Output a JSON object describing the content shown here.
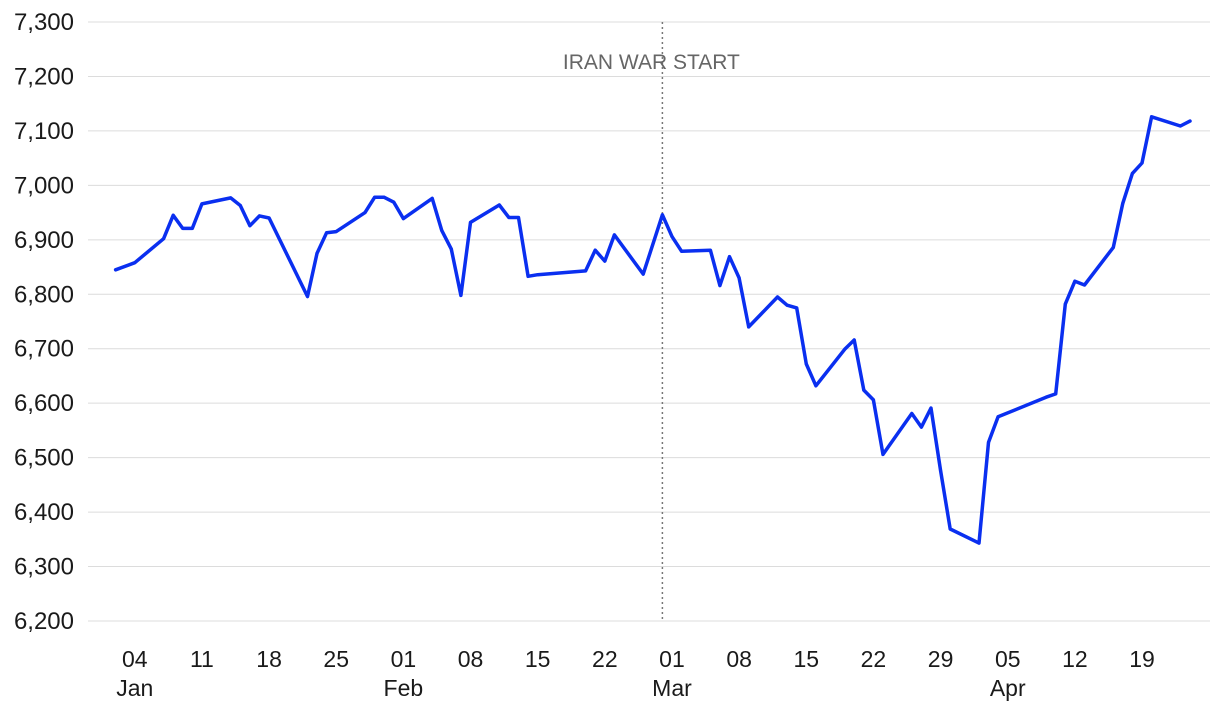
{
  "chart_data": {
    "type": "line",
    "title": "",
    "xlabel": "",
    "ylabel": "",
    "ylim": [
      6200,
      7300
    ],
    "yticks": [
      6200,
      6300,
      6400,
      6500,
      6600,
      6700,
      6800,
      6900,
      7000,
      7100,
      7200,
      7300
    ],
    "ytick_labels": [
      "6,200",
      "6,300",
      "6,400",
      "6,500",
      "6,600",
      "6,700",
      "6,800",
      "6,900",
      "7,000",
      "7,100",
      "7,200",
      "7,300"
    ],
    "xlim": [
      "2026-01-01",
      "2026-04-24"
    ],
    "xticks": [
      {
        "date": "2026-01-04",
        "day": "04",
        "month": "Jan"
      },
      {
        "date": "2026-01-11",
        "day": "11",
        "month": ""
      },
      {
        "date": "2026-01-18",
        "day": "18",
        "month": ""
      },
      {
        "date": "2026-01-25",
        "day": "25",
        "month": ""
      },
      {
        "date": "2026-02-01",
        "day": "01",
        "month": "Feb"
      },
      {
        "date": "2026-02-08",
        "day": "08",
        "month": ""
      },
      {
        "date": "2026-02-15",
        "day": "15",
        "month": ""
      },
      {
        "date": "2026-02-22",
        "day": "22",
        "month": ""
      },
      {
        "date": "2026-03-01",
        "day": "01",
        "month": "Mar"
      },
      {
        "date": "2026-03-08",
        "day": "08",
        "month": ""
      },
      {
        "date": "2026-03-15",
        "day": "15",
        "month": ""
      },
      {
        "date": "2026-03-22",
        "day": "22",
        "month": ""
      },
      {
        "date": "2026-03-29",
        "day": "29",
        "month": ""
      },
      {
        "date": "2026-04-05",
        "day": "05",
        "month": "Apr"
      },
      {
        "date": "2026-04-12",
        "day": "12",
        "month": ""
      },
      {
        "date": "2026-04-19",
        "day": "19",
        "month": ""
      }
    ],
    "grid": true,
    "annotation": {
      "label": "IRAN WAR START",
      "date": "2026-02-28"
    },
    "series": [
      {
        "color": "#0a2ff0",
        "points": [
          [
            "2026-01-02",
            6845
          ],
          [
            "2026-01-04",
            6858
          ],
          [
            "2026-01-07",
            6902
          ],
          [
            "2026-01-08",
            6945
          ],
          [
            "2026-01-09",
            6921
          ],
          [
            "2026-01-10",
            6921
          ],
          [
            "2026-01-11",
            6966
          ],
          [
            "2026-01-14",
            6977
          ],
          [
            "2026-01-15",
            6963
          ],
          [
            "2026-01-16",
            6926
          ],
          [
            "2026-01-17",
            6944
          ],
          [
            "2026-01-18",
            6940
          ],
          [
            "2026-01-22",
            6796
          ],
          [
            "2026-01-23",
            6875
          ],
          [
            "2026-01-24",
            6913
          ],
          [
            "2026-01-25",
            6915
          ],
          [
            "2026-01-28",
            6950
          ],
          [
            "2026-01-29",
            6978
          ],
          [
            "2026-01-30",
            6978
          ],
          [
            "2026-01-31",
            6969
          ],
          [
            "2026-02-01",
            6939
          ],
          [
            "2026-02-04",
            6976
          ],
          [
            "2026-02-05",
            6917
          ],
          [
            "2026-02-06",
            6883
          ],
          [
            "2026-02-07",
            6798
          ],
          [
            "2026-02-08",
            6932
          ],
          [
            "2026-02-11",
            6964
          ],
          [
            "2026-02-12",
            6941
          ],
          [
            "2026-02-13",
            6941
          ],
          [
            "2026-02-14",
            6833
          ],
          [
            "2026-02-15",
            6836
          ],
          [
            "2026-02-20",
            6843
          ],
          [
            "2026-02-21",
            6881
          ],
          [
            "2026-02-22",
            6861
          ],
          [
            "2026-02-23",
            6909
          ],
          [
            "2026-02-26",
            6837
          ],
          [
            "2026-02-28",
            6946
          ],
          [
            "2026-03-01",
            6906
          ],
          [
            "2026-03-02",
            6879
          ],
          [
            "2026-03-05",
            6881
          ],
          [
            "2026-03-06",
            6816
          ],
          [
            "2026-03-07",
            6869
          ],
          [
            "2026-03-08",
            6830
          ],
          [
            "2026-03-09",
            6740
          ],
          [
            "2026-03-12",
            6795
          ],
          [
            "2026-03-13",
            6780
          ],
          [
            "2026-03-14",
            6775
          ],
          [
            "2026-03-15",
            6672
          ],
          [
            "2026-03-16",
            6632
          ],
          [
            "2026-03-19",
            6699
          ],
          [
            "2026-03-20",
            6716
          ],
          [
            "2026-03-21",
            6624
          ],
          [
            "2026-03-22",
            6606
          ],
          [
            "2026-03-23",
            6506
          ],
          [
            "2026-03-26",
            6581
          ],
          [
            "2026-03-27",
            6556
          ],
          [
            "2026-03-28",
            6591
          ],
          [
            "2026-03-29",
            6476
          ],
          [
            "2026-03-30",
            6369
          ],
          [
            "2026-04-02",
            6343
          ],
          [
            "2026-04-03",
            6528
          ],
          [
            "2026-04-04",
            6575
          ],
          [
            "2026-04-09",
            6611
          ],
          [
            "2026-04-10",
            6617
          ],
          [
            "2026-04-11",
            6782
          ],
          [
            "2026-04-12",
            6824
          ],
          [
            "2026-04-13",
            6817
          ],
          [
            "2026-04-16",
            6886
          ],
          [
            "2026-04-17",
            6967
          ],
          [
            "2026-04-18",
            7022
          ],
          [
            "2026-04-19",
            7041
          ],
          [
            "2026-04-20",
            7126
          ],
          [
            "2026-04-23",
            7109
          ],
          [
            "2026-04-24",
            7118
          ]
        ]
      }
    ]
  }
}
